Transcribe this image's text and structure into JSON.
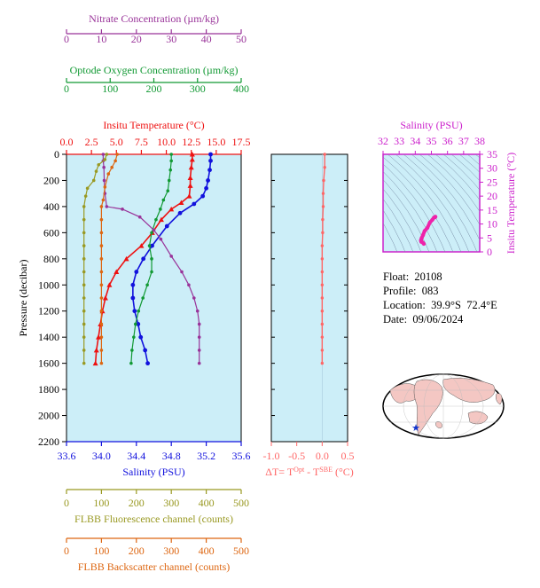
{
  "chart_data": {
    "type": "line",
    "colors": {
      "temperature": "#ee1111",
      "salinity": "#1111dd",
      "oxygen": "#119933",
      "nitrate": "#993399",
      "fluorescence": "#999922",
      "backscatter": "#dd6611",
      "delta_t": "#ff6666",
      "ts_line": "#ee22aa",
      "panel_bg": "#cceef8"
    },
    "profile_plot": {
      "ylabel": "Pressure (decibar)",
      "ylim": [
        0,
        2200
      ],
      "y_ticks": [
        "0",
        "200",
        "400",
        "600",
        "800",
        "1000",
        "1200",
        "1400",
        "1600",
        "1800",
        "2000",
        "2200"
      ],
      "axes": {
        "nitrate": {
          "label": "Nitrate Concentration (µm/kg)",
          "range": [
            0,
            50
          ],
          "ticks": [
            "0",
            "10",
            "20",
            "30",
            "40",
            "50"
          ]
        },
        "oxygen": {
          "label": "Optode Oxygen Concentration (µm/kg)",
          "range": [
            0,
            400
          ],
          "ticks": [
            "0",
            "100",
            "200",
            "300",
            "400"
          ]
        },
        "temperature": {
          "label": "Insitu Temperature (°C)",
          "range": [
            0,
            17.5
          ],
          "ticks": [
            "0.0",
            "2.5",
            "5.0",
            "7.5",
            "10.0",
            "12.5",
            "15.0",
            "17.5"
          ]
        },
        "salinity": {
          "label": "Salinity (PSU)",
          "range": [
            33.6,
            35.6
          ],
          "ticks": [
            "33.6",
            "34.0",
            "34.4",
            "34.8",
            "35.2",
            "35.6"
          ]
        },
        "fluorescence": {
          "label": "FLBB Fluorescence channel (counts)",
          "range": [
            0,
            500
          ],
          "ticks": [
            "0",
            "100",
            "200",
            "300",
            "400",
            "500"
          ]
        },
        "backscatter": {
          "label": "FLBB Backscatter channel (counts)",
          "range": [
            0,
            500
          ],
          "ticks": [
            "0",
            "100",
            "200",
            "300",
            "400",
            "500"
          ]
        }
      },
      "series": [
        {
          "name": "Insitu Temperature",
          "key": "temperature",
          "points": [
            [
              12.6,
              0
            ],
            [
              12.6,
              40
            ],
            [
              12.5,
              100
            ],
            [
              12.4,
              180
            ],
            [
              12.4,
              240
            ],
            [
              12.3,
              320
            ],
            [
              11.5,
              370
            ],
            [
              10.5,
              420
            ],
            [
              9.5,
              500
            ],
            [
              8.6,
              600
            ],
            [
              7.5,
              700
            ],
            [
              6.0,
              800
            ],
            [
              5.0,
              900
            ],
            [
              4.3,
              1000
            ],
            [
              3.9,
              1100
            ],
            [
              3.6,
              1200
            ],
            [
              3.4,
              1300
            ],
            [
              3.2,
              1400
            ],
            [
              3.0,
              1500
            ],
            [
              2.9,
              1600
            ]
          ]
        },
        {
          "name": "Salinity",
          "key": "salinity",
          "points": [
            [
              35.25,
              0
            ],
            [
              35.25,
              50
            ],
            [
              35.24,
              120
            ],
            [
              35.22,
              200
            ],
            [
              35.2,
              260
            ],
            [
              35.16,
              320
            ],
            [
              35.06,
              380
            ],
            [
              34.9,
              450
            ],
            [
              34.75,
              550
            ],
            [
              34.58,
              700
            ],
            [
              34.48,
              800
            ],
            [
              34.4,
              900
            ],
            [
              34.36,
              1000
            ],
            [
              34.36,
              1100
            ],
            [
              34.38,
              1200
            ],
            [
              34.42,
              1300
            ],
            [
              34.45,
              1400
            ],
            [
              34.5,
              1500
            ],
            [
              34.53,
              1600
            ]
          ]
        },
        {
          "name": "Optode Oxygen Concentration",
          "key": "oxygen",
          "points": [
            [
              240,
              0
            ],
            [
              240,
              50
            ],
            [
              238,
              120
            ],
            [
              235,
              200
            ],
            [
              232,
              280
            ],
            [
              222,
              350
            ],
            [
              215,
              420
            ],
            [
              205,
              500
            ],
            [
              195,
              600
            ],
            [
              190,
              700
            ],
            [
              195,
              800
            ],
            [
              195,
              900
            ],
            [
              185,
              1000
            ],
            [
              175,
              1100
            ],
            [
              165,
              1200
            ],
            [
              158,
              1300
            ],
            [
              154,
              1400
            ],
            [
              150,
              1500
            ],
            [
              148,
              1600
            ]
          ]
        },
        {
          "name": "Nitrate Concentration",
          "key": "nitrate",
          "points": [
            [
              10.5,
              0
            ],
            [
              10.5,
              50
            ],
            [
              10.7,
              100
            ],
            [
              10.8,
              200
            ],
            [
              11,
              300
            ],
            [
              11.5,
              400
            ],
            [
              16,
              420
            ],
            [
              21,
              480
            ],
            [
              25,
              580
            ],
            [
              27,
              650
            ],
            [
              30,
              780
            ],
            [
              33,
              900
            ],
            [
              35,
              1000
            ],
            [
              36.5,
              1100
            ],
            [
              37.5,
              1200
            ],
            [
              38,
              1300
            ],
            [
              38,
              1400
            ],
            [
              38,
              1500
            ],
            [
              38,
              1600
            ]
          ]
        },
        {
          "name": "FLBB Fluorescence channel",
          "key": "fluorescence",
          "points": [
            [
              115,
              0
            ],
            [
              110,
              40
            ],
            [
              92,
              80
            ],
            [
              85,
              130
            ],
            [
              78,
              200
            ],
            [
              60,
              260
            ],
            [
              55,
              320
            ],
            [
              50,
              400
            ],
            [
              50,
              500
            ],
            [
              50,
              600
            ],
            [
              50,
              700
            ],
            [
              50,
              800
            ],
            [
              50,
              900
            ],
            [
              50,
              1000
            ],
            [
              50,
              1100
            ],
            [
              50,
              1200
            ],
            [
              50,
              1300
            ],
            [
              50,
              1400
            ],
            [
              50,
              1500
            ],
            [
              50,
              1600
            ]
          ]
        },
        {
          "name": "FLBB Backscatter channel",
          "key": "backscatter",
          "points": [
            [
              145,
              0
            ],
            [
              140,
              50
            ],
            [
              130,
              100
            ],
            [
              120,
              150
            ],
            [
              110,
              250
            ],
            [
              105,
              350
            ],
            [
              100,
              400
            ],
            [
              100,
              500
            ],
            [
              100,
              600
            ],
            [
              100,
              700
            ],
            [
              100,
              800
            ],
            [
              100,
              900
            ],
            [
              100,
              1000
            ],
            [
              100,
              1100
            ],
            [
              100,
              1200
            ],
            [
              100,
              1300
            ],
            [
              100,
              1400
            ],
            [
              100,
              1500
            ],
            [
              100,
              1600
            ]
          ]
        }
      ]
    },
    "delta_t_plot": {
      "xlabel_parts": [
        "ΔT= T",
        "Opt",
        " - T",
        "SBE",
        " (°C)"
      ],
      "range": [
        -1.0,
        0.5
      ],
      "ticks": [
        "-1.0",
        "-0.5",
        "0.0",
        "0.5"
      ],
      "points": [
        [
          0.05,
          0
        ],
        [
          0.05,
          100
        ],
        [
          0.03,
          200
        ],
        [
          0.02,
          300
        ],
        [
          0.02,
          400
        ],
        [
          0.01,
          500
        ],
        [
          0.01,
          600
        ],
        [
          0.0,
          700
        ],
        [
          0.0,
          800
        ],
        [
          0.0,
          900
        ],
        [
          0.0,
          1000
        ],
        [
          0.0,
          1100
        ],
        [
          0.0,
          1200
        ],
        [
          0.0,
          1300
        ],
        [
          0.0,
          1400
        ],
        [
          0.0,
          1500
        ],
        [
          0.0,
          1600
        ]
      ]
    },
    "ts_plot": {
      "title": "Salinity (PSU)",
      "ylabel": "Insitu Temperature (°C)",
      "x_range": [
        32,
        38
      ],
      "y_range": [
        0,
        35
      ],
      "x_ticks": [
        "32",
        "33",
        "34",
        "35",
        "36",
        "37",
        "38"
      ],
      "y_ticks": [
        "0",
        "5",
        "10",
        "15",
        "20",
        "25",
        "30",
        "35"
      ],
      "points": [
        [
          34.53,
          2.9
        ],
        [
          34.45,
          3.4
        ],
        [
          34.38,
          3.6
        ],
        [
          34.36,
          3.9
        ],
        [
          34.36,
          4.3
        ],
        [
          34.4,
          5.0
        ],
        [
          34.48,
          6.0
        ],
        [
          34.58,
          7.5
        ],
        [
          34.75,
          8.6
        ],
        [
          34.9,
          10.5
        ],
        [
          35.06,
          11.5
        ],
        [
          35.16,
          12.3
        ],
        [
          35.22,
          12.4
        ],
        [
          35.25,
          12.6
        ]
      ]
    }
  },
  "info": {
    "float": "Float:  20108",
    "profile": "Profile:  083",
    "location": "Location:  39.9°S  72.4°E",
    "date": "Date:  09/06/2024"
  },
  "map": {
    "marker_color": "#1133cc",
    "land_color": "#f4c7c3"
  }
}
